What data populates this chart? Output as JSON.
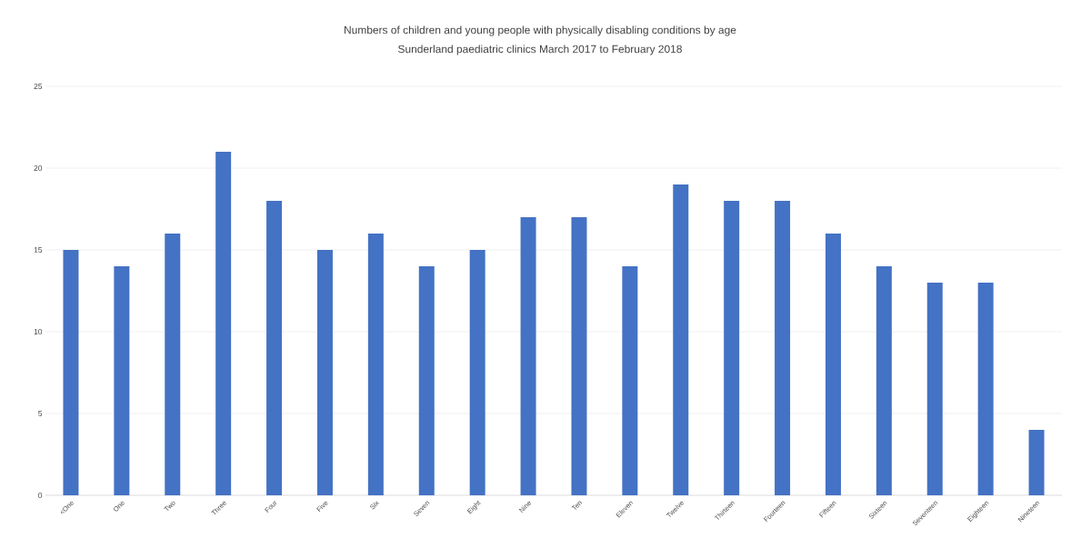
{
  "chart_data": {
    "type": "bar",
    "title": "Numbers of children and young people with physically disabling conditions by age",
    "subtitle": "Sunderland paediatric clinics March 2017 to February 2018",
    "categories": [
      "<One",
      "One",
      "Two",
      "Three",
      "Four",
      "Five",
      "Six",
      "Seven",
      "Eight",
      "Nine",
      "Ten",
      "Eleven",
      "Twelve",
      "Thirteen",
      "Fourteen",
      "Fifteen",
      "Sixteen",
      "Seventeen",
      "Eighteen",
      "Nineteen"
    ],
    "values": [
      15,
      14,
      16,
      21,
      18,
      15,
      16,
      14,
      15,
      17,
      17,
      14,
      19,
      18,
      18,
      16,
      14,
      13,
      13,
      4
    ],
    "color": "#4472c4",
    "ylim": [
      0,
      25
    ],
    "yticks": [
      0,
      5,
      10,
      15,
      20,
      25
    ],
    "grid": "y"
  }
}
